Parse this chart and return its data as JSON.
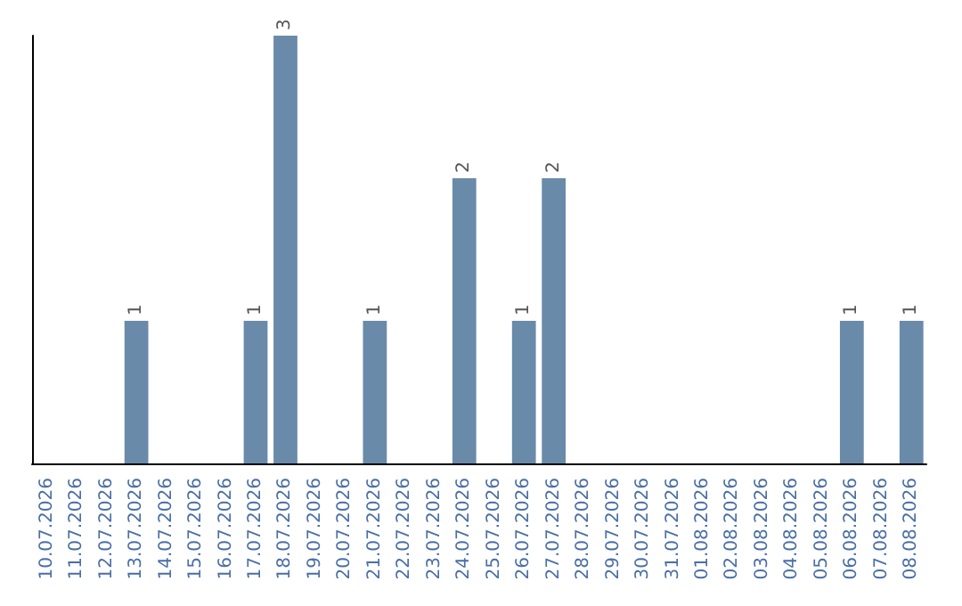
{
  "chart_data": {
    "type": "bar",
    "categories": [
      "10.07.2026",
      "11.07.2026",
      "12.07.2026",
      "13.07.2026",
      "14.07.2026",
      "15.07.2026",
      "16.07.2026",
      "17.07.2026",
      "18.07.2026",
      "19.07.2026",
      "20.07.2026",
      "21.07.2026",
      "22.07.2026",
      "23.07.2026",
      "24.07.2026",
      "25.07.2026",
      "26.07.2026",
      "27.07.2026",
      "28.07.2026",
      "29.07.2026",
      "30.07.2026",
      "31.07.2026",
      "01.08.2026",
      "02.08.2026",
      "03.08.2026",
      "04.08.2026",
      "05.08.2026",
      "06.08.2026",
      "07.08.2026",
      "08.08.2026"
    ],
    "values": [
      0,
      0,
      0,
      1,
      0,
      0,
      0,
      1,
      3,
      0,
      0,
      1,
      0,
      0,
      2,
      0,
      1,
      2,
      0,
      0,
      0,
      0,
      0,
      0,
      0,
      0,
      0,
      1,
      0,
      1
    ],
    "value_labels": [
      null,
      null,
      null,
      "1",
      null,
      null,
      null,
      "1",
      "3",
      null,
      null,
      "1",
      null,
      null,
      "2",
      null,
      "1",
      "2",
      null,
      null,
      null,
      null,
      null,
      null,
      null,
      null,
      null,
      "1",
      null,
      "1"
    ],
    "color": "#6a8aaa",
    "tick_labels": "x",
    "grid": false
  }
}
